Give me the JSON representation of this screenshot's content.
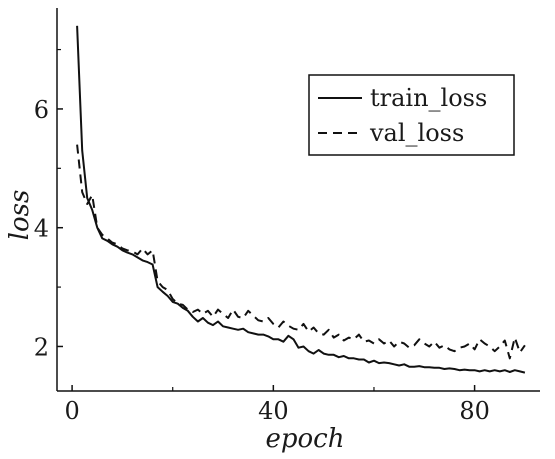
{
  "chart_data": {
    "type": "line",
    "title": "",
    "xlabel": "epoch",
    "ylabel": "loss",
    "xlim": [
      -3,
      93
    ],
    "ylim": [
      1.25,
      7.7
    ],
    "xticks": [
      0,
      40,
      80
    ],
    "xminor": [
      20,
      60
    ],
    "yticks": [
      2,
      4,
      6
    ],
    "yminor": [
      3,
      5,
      7
    ],
    "grid": false,
    "legend": "top-right",
    "series": [
      {
        "name": "train_loss",
        "style": "solid",
        "color": "#111111",
        "x": [
          1,
          2,
          3,
          4,
          5,
          6,
          7,
          8,
          9,
          10,
          11,
          12,
          13,
          14,
          15,
          16,
          17,
          18,
          19,
          20,
          21,
          22,
          23,
          24,
          25,
          26,
          27,
          28,
          29,
          30,
          31,
          32,
          33,
          34,
          35,
          36,
          37,
          38,
          39,
          40,
          41,
          42,
          43,
          44,
          45,
          46,
          47,
          48,
          49,
          50,
          51,
          52,
          53,
          54,
          55,
          56,
          57,
          58,
          59,
          60,
          61,
          62,
          63,
          64,
          65,
          66,
          67,
          68,
          69,
          70,
          71,
          72,
          73,
          74,
          75,
          76,
          77,
          78,
          79,
          80,
          81,
          82,
          83,
          84,
          85,
          86,
          87,
          88,
          89,
          90
        ],
        "y": [
          7.4,
          5.3,
          4.5,
          4.3,
          4.0,
          3.82,
          3.78,
          3.72,
          3.68,
          3.62,
          3.58,
          3.55,
          3.5,
          3.45,
          3.42,
          3.38,
          3.0,
          2.92,
          2.85,
          2.75,
          2.72,
          2.65,
          2.6,
          2.5,
          2.42,
          2.48,
          2.4,
          2.36,
          2.42,
          2.34,
          2.32,
          2.3,
          2.28,
          2.3,
          2.24,
          2.22,
          2.2,
          2.2,
          2.17,
          2.12,
          2.12,
          2.08,
          2.18,
          2.12,
          1.98,
          2.0,
          1.92,
          1.88,
          1.94,
          1.88,
          1.86,
          1.86,
          1.82,
          1.84,
          1.8,
          1.8,
          1.78,
          1.78,
          1.73,
          1.76,
          1.72,
          1.73,
          1.72,
          1.7,
          1.68,
          1.7,
          1.66,
          1.66,
          1.67,
          1.65,
          1.65,
          1.64,
          1.64,
          1.62,
          1.63,
          1.62,
          1.6,
          1.61,
          1.6,
          1.6,
          1.58,
          1.6,
          1.58,
          1.6,
          1.58,
          1.6,
          1.57,
          1.6,
          1.58,
          1.56
        ]
      },
      {
        "name": "val_loss",
        "style": "dashed",
        "color": "#111111",
        "x": [
          1,
          2,
          3,
          4,
          5,
          6,
          7,
          8,
          9,
          10,
          11,
          12,
          13,
          14,
          15,
          16,
          17,
          18,
          19,
          20,
          21,
          22,
          23,
          24,
          25,
          26,
          27,
          28,
          29,
          30,
          31,
          32,
          33,
          34,
          35,
          36,
          37,
          38,
          39,
          40,
          41,
          42,
          43,
          44,
          45,
          46,
          47,
          48,
          49,
          50,
          51,
          52,
          53,
          54,
          55,
          56,
          57,
          58,
          59,
          60,
          61,
          62,
          63,
          64,
          65,
          66,
          67,
          68,
          69,
          70,
          71,
          72,
          73,
          74,
          75,
          76,
          77,
          78,
          79,
          80,
          81,
          82,
          83,
          84,
          85,
          86,
          87,
          88,
          89,
          90
        ],
        "y": [
          5.4,
          4.6,
          4.4,
          4.55,
          4.0,
          3.88,
          3.82,
          3.75,
          3.72,
          3.65,
          3.62,
          3.6,
          3.55,
          3.65,
          3.55,
          3.62,
          3.1,
          3.0,
          2.95,
          2.8,
          2.72,
          2.7,
          2.62,
          2.58,
          2.62,
          2.55,
          2.6,
          2.5,
          2.62,
          2.55,
          2.48,
          2.62,
          2.5,
          2.48,
          2.6,
          2.52,
          2.44,
          2.42,
          2.48,
          2.38,
          2.32,
          2.42,
          2.35,
          2.3,
          2.28,
          2.38,
          2.25,
          2.32,
          2.22,
          2.2,
          2.28,
          2.15,
          2.2,
          2.1,
          2.15,
          2.12,
          2.2,
          2.08,
          2.1,
          2.05,
          2.12,
          2.05,
          2.1,
          2.0,
          2.08,
          2.05,
          1.98,
          2.02,
          2.12,
          2.05,
          2.0,
          2.08,
          1.98,
          2.02,
          1.95,
          1.92,
          1.98,
          2.0,
          2.05,
          1.95,
          2.12,
          2.05,
          2.0,
          1.92,
          2.0,
          2.1,
          1.8,
          2.15,
          1.9,
          2.02
        ]
      }
    ]
  }
}
